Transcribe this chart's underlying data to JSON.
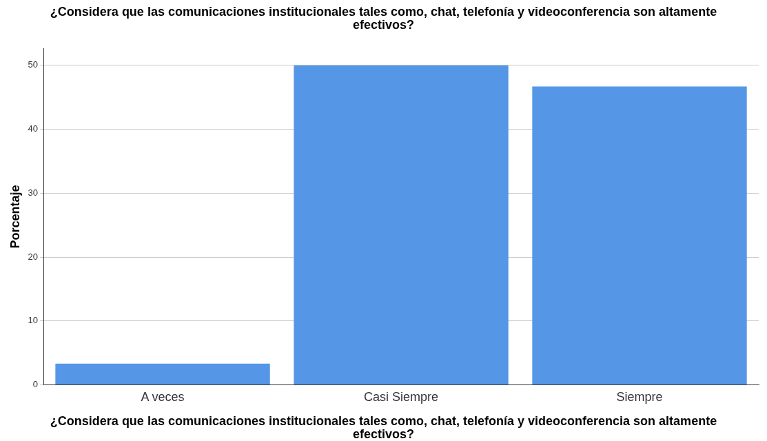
{
  "chart_data": {
    "type": "bar",
    "title": "¿Considera que las comunicaciones institucionales tales como, chat, telefonía y videoconferencia son altamente efectivos?",
    "xlabel": "¿Considera que las comunicaciones institucionales tales como, chat, telefonía y videoconferencia son altamente efectivos?",
    "ylabel": "Porcentaje",
    "categories": [
      "A veces",
      "Casi Siempre",
      "Siempre"
    ],
    "values": [
      3.3,
      50,
      46.7
    ],
    "color": "#5597e6",
    "ylim": [
      0,
      52.6
    ],
    "yticks": [
      0,
      10,
      20,
      30,
      40,
      50
    ],
    "grid": "y"
  }
}
